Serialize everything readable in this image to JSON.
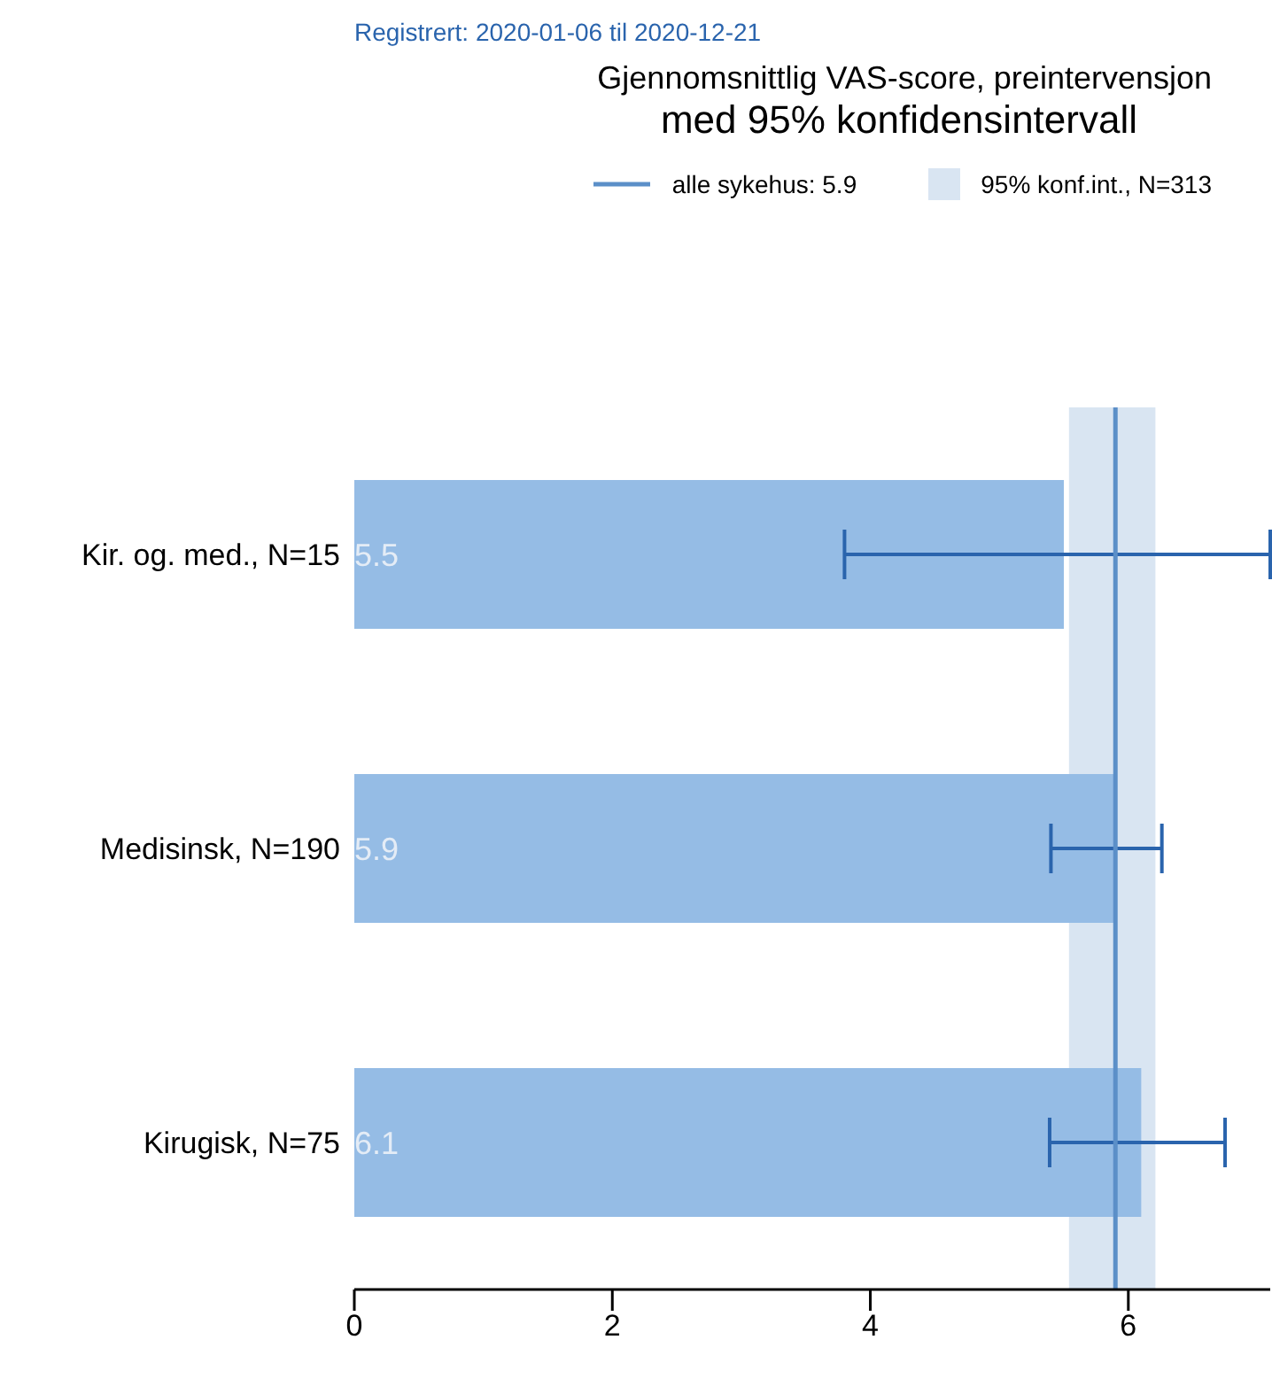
{
  "chart_data": {
    "type": "bar",
    "orientation": "horizontal",
    "title": "Gjennomsnittlig VAS-score, preintervensjon",
    "subtitle": "med 95% konfidensintervall",
    "annotations": [
      "Registrert: 2020-01-06 til 2020-12-21"
    ],
    "categories": [
      "Kir. og. med., N=15",
      "Medisinsk, N=190",
      "Kirugisk, N=75"
    ],
    "values": [
      5.5,
      5.9,
      6.1
    ],
    "color": "#95bce5",
    "errors": [
      [
        3.8,
        7.1
      ],
      [
        5.4,
        6.26
      ],
      [
        5.39,
        6.75
      ]
    ],
    "data_labels": true,
    "xlim": [
      0,
      7.1
    ],
    "xticks": [
      0,
      2,
      4,
      6
    ],
    "ref_lines": [
      {
        "axis": "x",
        "value": 5.9,
        "label": "alle sykehus: 5.9",
        "color": "#5b8fc8"
      }
    ],
    "bands": [
      {
        "axis": "x",
        "from": 5.54,
        "to": 6.21,
        "label": "95% konf.int., N=313",
        "color": "#d9e5f2"
      }
    ],
    "legend": "top right"
  }
}
